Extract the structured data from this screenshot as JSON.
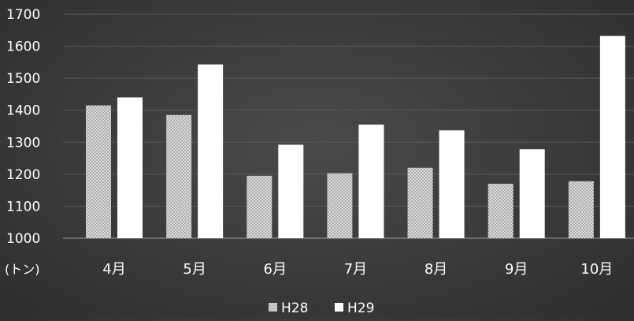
{
  "chart_data": {
    "type": "bar",
    "unit_label": "(トン)",
    "categories": [
      "4月",
      "5月",
      "6月",
      "7月",
      "8月",
      "9月",
      "10月"
    ],
    "series": [
      {
        "name": "H28",
        "values": [
          1415,
          1385,
          1195,
          1203,
          1220,
          1170,
          1178
        ],
        "pattern": "dotted"
      },
      {
        "name": "H29",
        "values": [
          1440,
          1543,
          1292,
          1355,
          1337,
          1278,
          1632
        ],
        "pattern": "solid"
      }
    ],
    "ylim": [
      1000,
      1700
    ],
    "yticks": [
      "1000",
      "1100",
      "1200",
      "1300",
      "1400",
      "1500",
      "1600",
      "1700"
    ],
    "grid": true,
    "legend_position": "bottom",
    "colors": {
      "h29": "#ffffff",
      "h28_base": "#d9d9d9",
      "h28_dot": "#8c8c8c"
    }
  }
}
